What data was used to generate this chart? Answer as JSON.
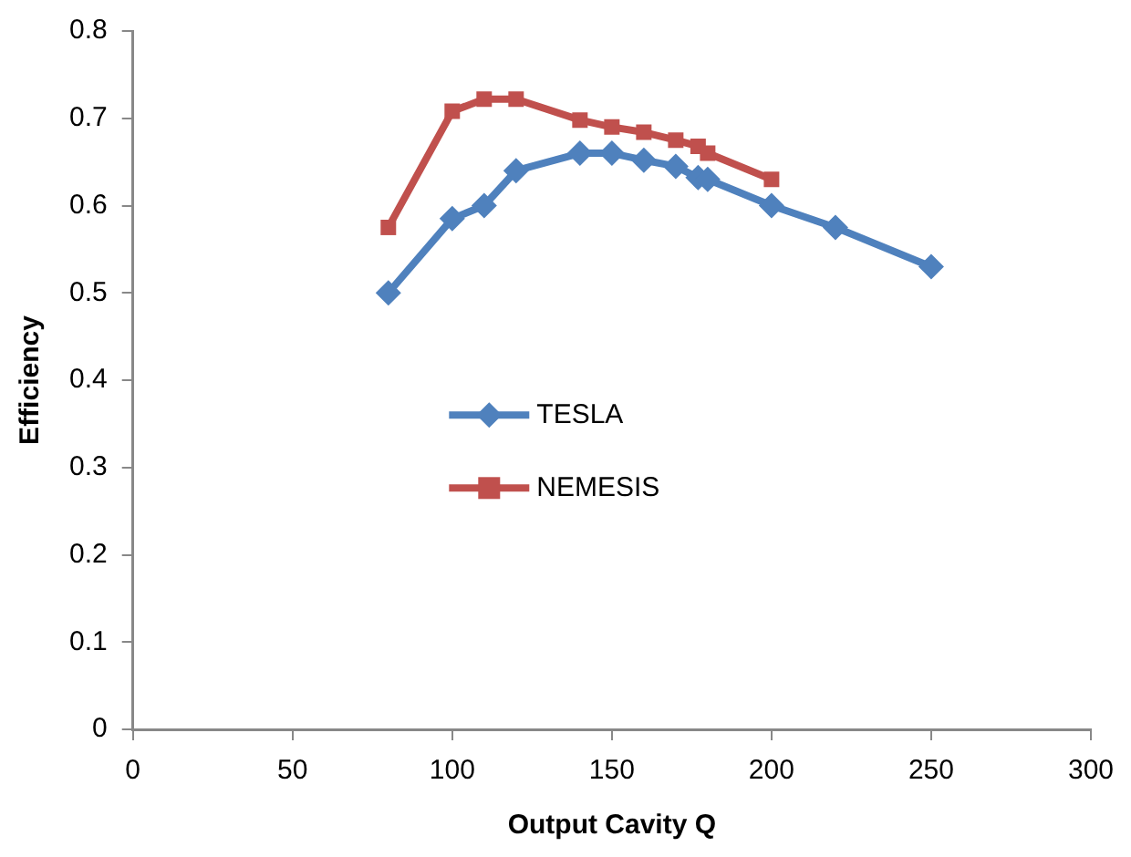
{
  "chart_data": {
    "type": "line",
    "xlabel": "Output Cavity Q",
    "ylabel": "Efficiency",
    "xlim": [
      0,
      300
    ],
    "xticks": [
      0,
      50,
      100,
      150,
      200,
      250,
      300
    ],
    "ylim": [
      0,
      0.8
    ],
    "yticks": [
      0,
      0.1,
      0.2,
      0.3,
      0.4,
      0.5,
      0.6,
      0.7,
      0.8
    ],
    "grid": false,
    "legend": "left",
    "series": [
      {
        "name": "TESLA",
        "color": "#4f81bd",
        "marker": "diamond",
        "x": [
          80,
          100,
          110,
          120,
          140,
          150,
          160,
          170,
          177,
          180,
          200,
          220,
          250
        ],
        "values": [
          0.5,
          0.585,
          0.6,
          0.64,
          0.66,
          0.66,
          0.652,
          0.645,
          0.632,
          0.63,
          0.6,
          0.575,
          0.53
        ]
      },
      {
        "name": "NEMESIS",
        "color": "#c0504d",
        "marker": "square",
        "x": [
          80,
          100,
          110,
          120,
          140,
          150,
          160,
          170,
          177,
          180,
          200
        ],
        "values": [
          0.575,
          0.708,
          0.722,
          0.722,
          0.698,
          0.69,
          0.684,
          0.675,
          0.668,
          0.66,
          0.63
        ]
      }
    ]
  }
}
